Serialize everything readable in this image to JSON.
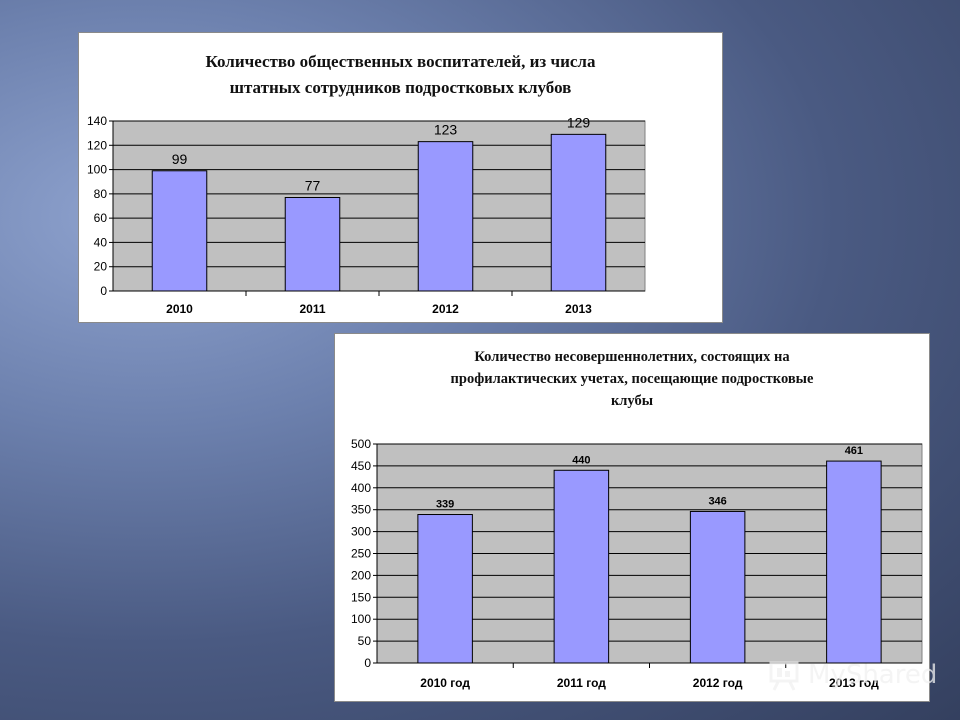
{
  "chart_data": [
    {
      "type": "bar",
      "title_lines": [
        "Количество общественных воспитателей, из числа",
        "штатных сотрудников подростковых клубов"
      ],
      "categories": [
        "2010",
        "2011",
        "2012",
        "2013"
      ],
      "values": [
        99,
        77,
        123,
        129
      ],
      "ylim": [
        0,
        140
      ],
      "yticks": [
        0,
        20,
        40,
        60,
        80,
        100,
        120,
        140
      ],
      "grid": true,
      "colors": {
        "bar": "#9999ff",
        "plot_bg": "#c0c0c0",
        "grid": "#000000"
      }
    },
    {
      "type": "bar",
      "title_lines": [
        "Количество несовершеннолетних, состоящих на",
        "профилактических учетах, посещающие подростковые",
        "клубы"
      ],
      "categories": [
        "2010 год",
        "2011 год",
        "2012 год",
        "2013 год"
      ],
      "values": [
        339,
        440,
        346,
        461
      ],
      "ylim": [
        0,
        500
      ],
      "yticks": [
        0,
        50,
        100,
        150,
        200,
        250,
        300,
        350,
        400,
        450,
        500
      ],
      "grid": true,
      "colors": {
        "bar": "#9999ff",
        "plot_bg": "#c0c0c0",
        "grid": "#000000"
      }
    }
  ],
  "watermark": {
    "text": "MyShared",
    "icon": "presentation-board-icon"
  }
}
